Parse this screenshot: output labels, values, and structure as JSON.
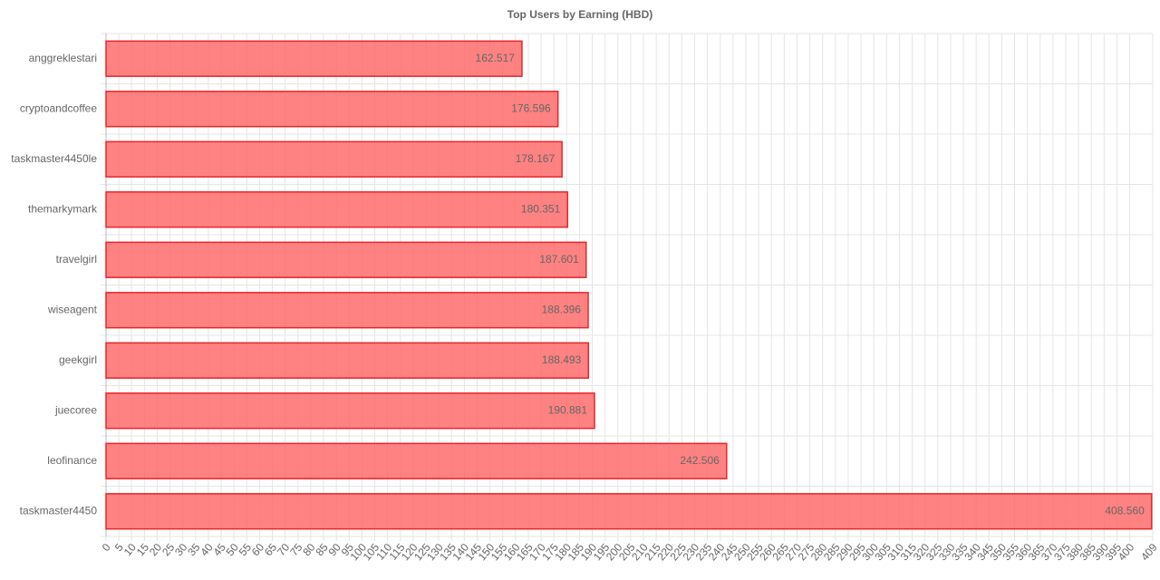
{
  "chart_data": {
    "type": "hbar",
    "title": "Top Users by Earning (HBD)",
    "categories": [
      "anggreklestari",
      "cryptoandcoffee",
      "taskmaster4450le",
      "themarkymark",
      "travelgirl",
      "wiseagent",
      "geekgirl",
      "juecoree",
      "leofinance",
      "taskmaster4450"
    ],
    "values": [
      162.517,
      176.596,
      178.167,
      180.351,
      187.601,
      188.396,
      188.493,
      190.881,
      242.506,
      408.56
    ],
    "value_labels": [
      "162.517",
      "176.596",
      "178.167",
      "180.351",
      "187.601",
      "188.396",
      "188.493",
      "190.881",
      "242.506",
      "408.560"
    ],
    "color": "rgba(255, 99, 99, 0.8)",
    "border_color": "#e8262a",
    "xlim": [
      0,
      409
    ],
    "xticks": [
      0,
      5,
      10,
      15,
      20,
      25,
      30,
      35,
      40,
      45,
      50,
      55,
      60,
      65,
      70,
      75,
      80,
      85,
      90,
      95,
      100,
      105,
      110,
      115,
      120,
      125,
      130,
      135,
      140,
      145,
      150,
      155,
      160,
      165,
      170,
      175,
      180,
      185,
      190,
      195,
      200,
      205,
      210,
      215,
      220,
      225,
      230,
      235,
      240,
      245,
      250,
      255,
      260,
      265,
      270,
      275,
      280,
      285,
      290,
      295,
      300,
      305,
      310,
      315,
      320,
      325,
      330,
      335,
      340,
      345,
      350,
      355,
      360,
      365,
      370,
      375,
      380,
      385,
      390,
      395,
      400,
      409
    ],
    "grid": true
  }
}
